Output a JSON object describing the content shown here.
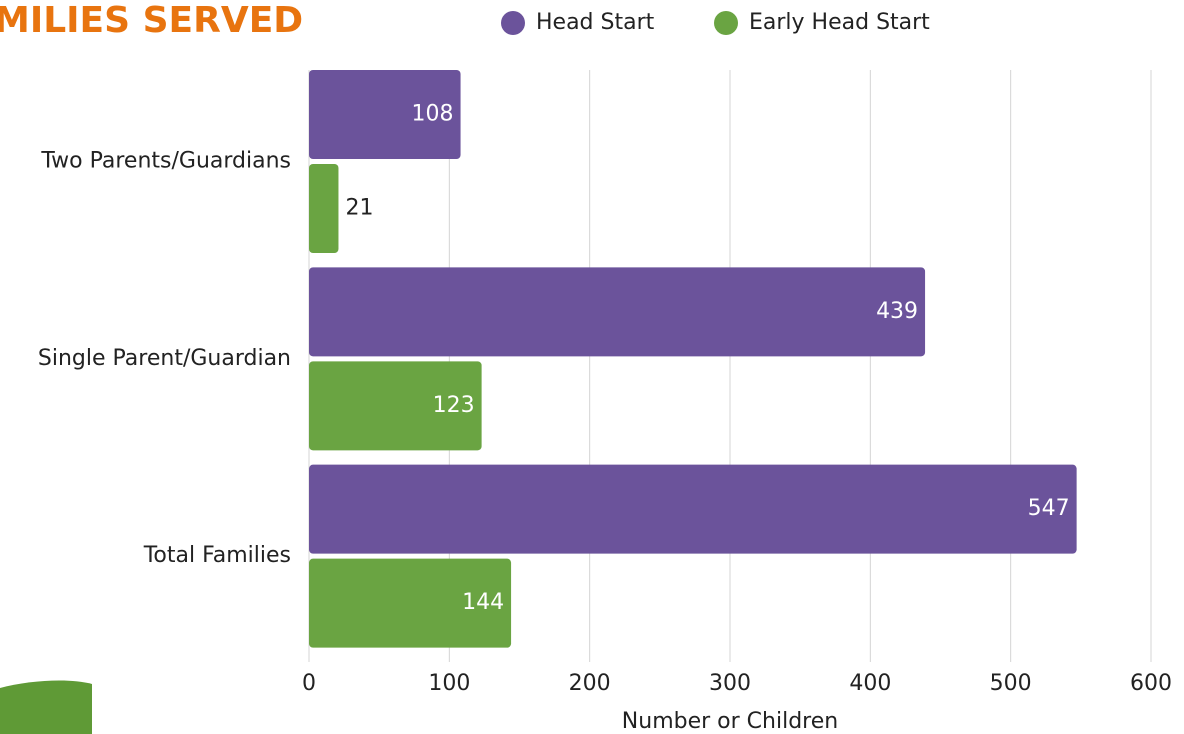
{
  "chart_data": {
    "type": "bar",
    "orientation": "horizontal",
    "title": "MILIES SERVED",
    "categories": [
      "Two Parents/Guardians",
      "Single Parent/Guardian",
      "Total Families"
    ],
    "series": [
      {
        "name": "Head Start",
        "color": "#6b539b",
        "values": [
          108,
          439,
          547
        ]
      },
      {
        "name": "Early Head Start",
        "color": "#6aa442",
        "values": [
          21,
          123,
          144
        ]
      }
    ],
    "x_label": "Number or Children",
    "xlim": [
      0,
      600
    ],
    "xticks": [
      0,
      100,
      200,
      300,
      400,
      500,
      600
    ],
    "grid": true
  }
}
